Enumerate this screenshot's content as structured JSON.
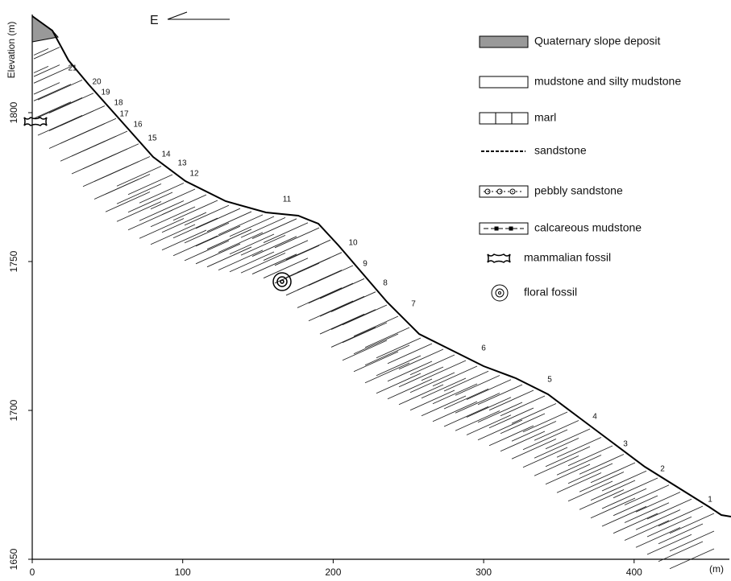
{
  "axes": {
    "y_label": "Elevation (m)",
    "x_unit": "(m)",
    "x_ticks": [
      "0",
      "100",
      "200",
      "300",
      "400"
    ],
    "y_ticks": [
      "1650",
      "1700",
      "1750",
      "1800"
    ]
  },
  "direction": "E",
  "beds": [
    "21",
    "20",
    "19",
    "18",
    "17",
    "16",
    "15",
    "14",
    "13",
    "12",
    "11",
    "10",
    "9",
    "8",
    "7",
    "6",
    "5",
    "4",
    "3",
    "2",
    "1"
  ],
  "legend": [
    "Quaternary slope deposit",
    "mudstone and silty mudstone",
    "marl",
    "sandstone",
    "pebbly sandstone",
    "calcareous mudstone",
    "mammalian fossil",
    "floral fossil"
  ]
}
